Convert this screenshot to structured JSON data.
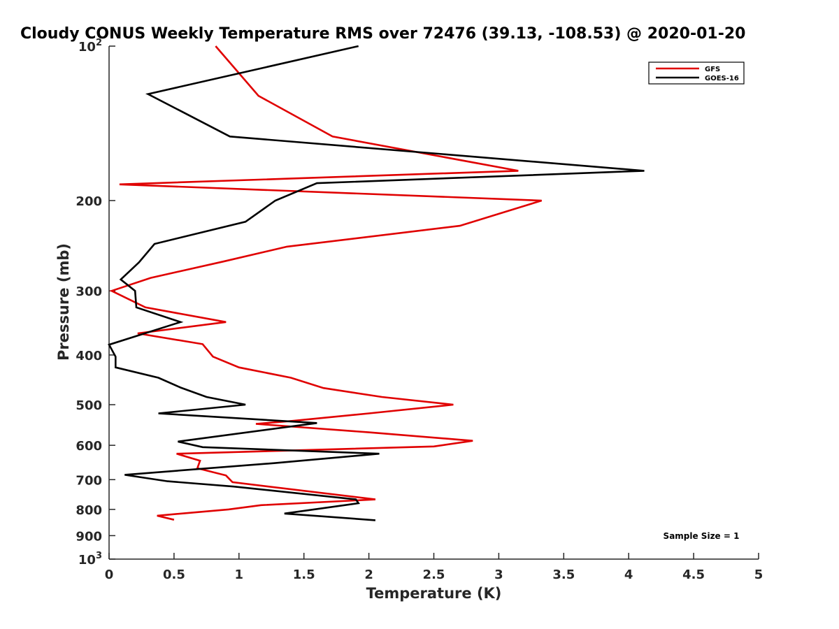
{
  "chart_data": {
    "type": "line",
    "title": "Cloudy CONUS Weekly Temperature RMS over 72476 (39.13, -108.53) @ 2020-01-20",
    "xlabel": "Temperature (K)",
    "ylabel": "Pressure (mb)",
    "xlim": [
      0,
      5
    ],
    "ylim": [
      100,
      1000
    ],
    "y_scale": "log",
    "y_reversed": true,
    "grid": false,
    "legend_position": "top-right",
    "x_ticks": [
      "0",
      "0.5",
      "1",
      "1.5",
      "2",
      "2.5",
      "3",
      "3.5",
      "4",
      "4.5",
      "5"
    ],
    "x_tick_values": [
      0,
      0.5,
      1,
      1.5,
      2,
      2.5,
      3,
      3.5,
      4,
      4.5,
      5
    ],
    "y_ticks": [
      {
        "value": 100,
        "base": "10",
        "exp": "2"
      },
      {
        "value": 200,
        "label": "200"
      },
      {
        "value": 300,
        "label": "300"
      },
      {
        "value": 400,
        "label": "400"
      },
      {
        "value": 500,
        "label": "500"
      },
      {
        "value": 600,
        "label": "600"
      },
      {
        "value": 700,
        "label": "700"
      },
      {
        "value": 800,
        "label": "800"
      },
      {
        "value": 900,
        "label": "900"
      },
      {
        "value": 1000,
        "base": "10",
        "exp": "3"
      }
    ],
    "annotation": "Sample Size = 1",
    "series": [
      {
        "name": "GFS",
        "color": "#e00000",
        "points": [
          [
            0.82,
            100
          ],
          [
            1.15,
            125
          ],
          [
            1.72,
            150
          ],
          [
            3.15,
            175
          ],
          [
            0.08,
            186
          ],
          [
            3.33,
            200
          ],
          [
            2.7,
            224
          ],
          [
            1.37,
            246
          ],
          [
            0.88,
            263
          ],
          [
            0.32,
            283
          ],
          [
            0.02,
            300
          ],
          [
            0.28,
            323
          ],
          [
            0.9,
            345
          ],
          [
            0.22,
            363
          ],
          [
            0.72,
            381
          ],
          [
            0.8,
            403
          ],
          [
            1.0,
            423
          ],
          [
            1.4,
            443
          ],
          [
            1.65,
            464
          ],
          [
            2.1,
            483
          ],
          [
            2.65,
            500
          ],
          [
            2.0,
            520
          ],
          [
            1.4,
            538
          ],
          [
            1.13,
            545
          ],
          [
            2.0,
            566
          ],
          [
            2.8,
            588
          ],
          [
            2.5,
            603
          ],
          [
            0.52,
            623
          ],
          [
            0.7,
            643
          ],
          [
            0.68,
            665
          ],
          [
            0.9,
            687
          ],
          [
            0.95,
            708
          ],
          [
            2.05,
            765
          ],
          [
            1.17,
            785
          ],
          [
            0.92,
            800
          ],
          [
            0.37,
            823
          ],
          [
            0.5,
            838
          ]
        ]
      },
      {
        "name": "GOES-16",
        "color": "#000000",
        "points": [
          [
            1.92,
            100
          ],
          [
            0.3,
            124
          ],
          [
            0.93,
            150
          ],
          [
            4.12,
            175
          ],
          [
            1.6,
            185
          ],
          [
            1.28,
            200
          ],
          [
            1.05,
            220
          ],
          [
            0.35,
            243
          ],
          [
            0.23,
            264
          ],
          [
            0.09,
            285
          ],
          [
            0.2,
            300
          ],
          [
            0.21,
            323
          ],
          [
            0.55,
            345
          ],
          [
            0.0,
            382
          ],
          [
            0.05,
            403
          ],
          [
            0.05,
            423
          ],
          [
            0.38,
            443
          ],
          [
            0.55,
            463
          ],
          [
            0.75,
            483
          ],
          [
            1.05,
            500
          ],
          [
            0.38,
            520
          ],
          [
            1.6,
            543
          ],
          [
            0.53,
            590
          ],
          [
            0.72,
            605
          ],
          [
            2.08,
            623
          ],
          [
            1.27,
            650
          ],
          [
            0.12,
            685
          ],
          [
            0.45,
            705
          ],
          [
            0.96,
            722
          ],
          [
            1.9,
            765
          ],
          [
            1.92,
            778
          ],
          [
            1.5,
            805
          ],
          [
            1.35,
            815
          ],
          [
            2.05,
            840
          ]
        ]
      }
    ]
  }
}
